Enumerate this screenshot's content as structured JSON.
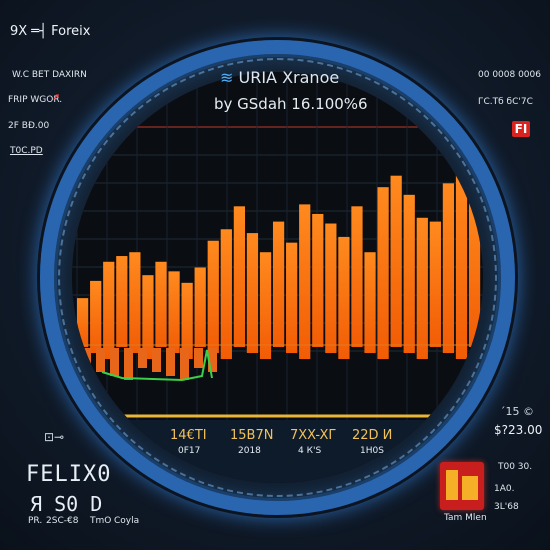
{
  "top_left_title": "9X ═┤ Foreix",
  "left_panel": {
    "line1": "W.C BET   DAXIRN",
    "line2": "FRIP WGOR.",
    "line3": "2F BÐ.00",
    "line4": "T0C.PD"
  },
  "right_panel": {
    "line1": "00 0008 0006",
    "line2": "ГC.Тб бC'7C",
    "badge": "FI",
    "line3": "´15 ©",
    "line4": "$?23.00",
    "line5": "T00 30.",
    "line6": "1A0.",
    "line7": "3L'68",
    "line8": "Tam Mlen"
  },
  "chart_header": {
    "title": "URIA Xranoe",
    "subtitle": "by GSdah 16.100%6"
  },
  "stats": [
    {
      "value": "14€ТI",
      "sub": "0F17"
    },
    {
      "value": "15В7N",
      "sub": "2018"
    },
    {
      "value": "7XX-XГ",
      "sub": "4 К'S"
    },
    {
      "value": "22D И",
      "sub": "1Н0S"
    }
  ],
  "bottom_left": {
    "title": "FELIX0",
    "big": "Я  Ѕ0  D",
    "caption1": "PR.",
    "caption2": "2SC-€8",
    "caption3": "TmO",
    "caption4": "Coyla"
  },
  "colors": {
    "bar_top": "#ff8a1e",
    "bar_bottom": "#f25c05",
    "grid_red": "#c0392b",
    "ring": "#2a66b0",
    "stat_value": "#f1c15a"
  },
  "chart_data": {
    "type": "bar",
    "values": [
      36,
      45,
      55,
      58,
      60,
      48,
      55,
      50,
      44,
      52,
      66,
      72,
      84,
      70,
      60,
      76,
      65,
      85,
      80,
      75,
      68,
      84,
      60,
      94,
      100,
      90,
      78,
      76,
      96,
      106,
      92
    ],
    "ylim": [
      0,
      115
    ],
    "grid": true
  }
}
